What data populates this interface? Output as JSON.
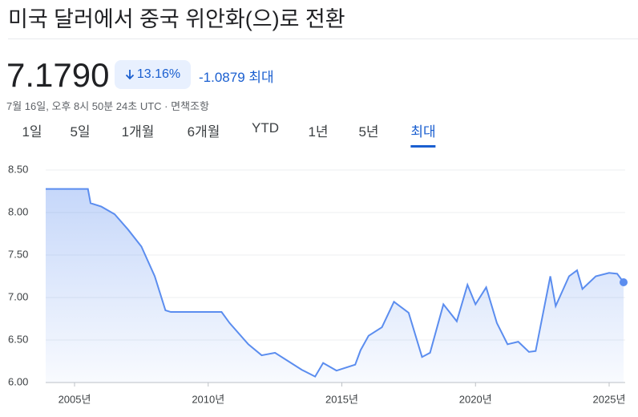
{
  "header": {
    "title": "미국 달러에서 중국 위안화(으)로 전환",
    "price": "7.1790",
    "change_pct": "13.16%",
    "change": "-1.0879",
    "period": "최대",
    "timestamp": "7월 16일, 오후 8시 50분 24초 UTC",
    "disclaimer": "면책조항"
  },
  "tabs": {
    "items": [
      "1일",
      "5일",
      "1개월",
      "6개월",
      "YTD",
      "1년",
      "5년",
      "최대"
    ],
    "selected": 7
  },
  "chart_data": {
    "type": "line",
    "x": [
      2003.92,
      2005.5,
      2005.6,
      2006.0,
      2006.5,
      2007.0,
      2007.5,
      2008.0,
      2008.4,
      2008.6,
      2010.5,
      2010.8,
      2011.5,
      2012.0,
      2012.5,
      2013.0,
      2013.5,
      2014.0,
      2014.3,
      2014.8,
      2015.5,
      2015.7,
      2016.0,
      2016.5,
      2016.95,
      2017.5,
      2018.0,
      2018.3,
      2018.8,
      2019.3,
      2019.7,
      2020.0,
      2020.4,
      2020.8,
      2021.2,
      2021.6,
      2022.0,
      2022.25,
      2022.8,
      2023.0,
      2023.5,
      2023.8,
      2024.0,
      2024.5,
      2025.0,
      2025.3,
      2025.54
    ],
    "series": [
      {
        "color": "#5b8def",
        "values": [
          8.277,
          8.277,
          8.11,
          8.07,
          7.98,
          7.8,
          7.6,
          7.25,
          6.85,
          6.83,
          6.83,
          6.7,
          6.45,
          6.32,
          6.35,
          6.25,
          6.15,
          6.07,
          6.23,
          6.14,
          6.21,
          6.38,
          6.55,
          6.65,
          6.95,
          6.82,
          6.3,
          6.35,
          6.92,
          6.72,
          7.15,
          6.92,
          7.12,
          6.7,
          6.45,
          6.48,
          6.36,
          6.37,
          7.25,
          6.9,
          7.25,
          7.32,
          7.1,
          7.25,
          7.29,
          7.28,
          7.179
        ]
      }
    ],
    "xlim": [
      2003.92,
      2025.6
    ],
    "ylim": [
      6.0,
      8.5
    ],
    "xticks": [
      {
        "value": 2005,
        "label": "2005년"
      },
      {
        "value": 2010,
        "label": "2010년"
      },
      {
        "value": 2015,
        "label": "2015년"
      },
      {
        "value": 2020,
        "label": "2020년"
      },
      {
        "value": 2025,
        "label": "2025년"
      }
    ],
    "yticks": [
      {
        "value": 6.0,
        "label": "6.00"
      },
      {
        "value": 6.5,
        "label": "6.50"
      },
      {
        "value": 7.0,
        "label": "7.00"
      },
      {
        "value": 7.5,
        "label": "7.50"
      },
      {
        "value": 8.0,
        "label": "8.00"
      },
      {
        "value": 8.5,
        "label": "8.50"
      }
    ],
    "grid": true
  }
}
